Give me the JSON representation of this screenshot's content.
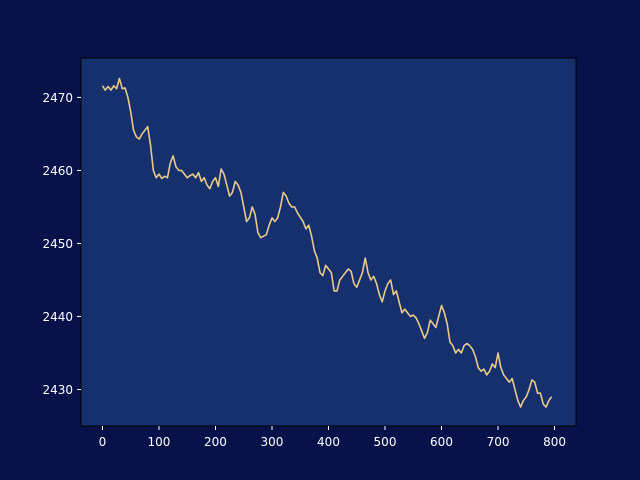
{
  "colors": {
    "figure_bg": "#08124a",
    "axes_bg": "#16306d",
    "axis": "#000000",
    "tick_text": "#ffffff",
    "line": "#e8c98a"
  },
  "chart_data": {
    "type": "line",
    "title": "",
    "xlabel": "",
    "ylabel": "",
    "xlim": [
      -38,
      838
    ],
    "ylim": [
      2425.0,
      2475.4
    ],
    "xticks": [
      0,
      100,
      200,
      300,
      400,
      500,
      600,
      700,
      800
    ],
    "yticks": [
      2430,
      2440,
      2450,
      2460,
      2470
    ],
    "grid": false,
    "legend": false,
    "series": [
      {
        "color": "#e8c98a",
        "points": [
          [
            0,
            2471.6
          ],
          [
            5,
            2471.0
          ],
          [
            10,
            2471.5
          ],
          [
            15,
            2471.0
          ],
          [
            20,
            2471.6
          ],
          [
            25,
            2471.2
          ],
          [
            30,
            2472.6
          ],
          [
            35,
            2471.2
          ],
          [
            40,
            2471.3
          ],
          [
            45,
            2470.0
          ],
          [
            50,
            2468.0
          ],
          [
            55,
            2465.5
          ],
          [
            60,
            2464.6
          ],
          [
            65,
            2464.3
          ],
          [
            70,
            2465.0
          ],
          [
            75,
            2465.5
          ],
          [
            80,
            2466.0
          ],
          [
            85,
            2463.5
          ],
          [
            90,
            2460.0
          ],
          [
            95,
            2459.0
          ],
          [
            100,
            2459.5
          ],
          [
            105,
            2458.9
          ],
          [
            110,
            2459.2
          ],
          [
            115,
            2459.0
          ],
          [
            120,
            2461.0
          ],
          [
            125,
            2462.0
          ],
          [
            130,
            2460.5
          ],
          [
            135,
            2460.0
          ],
          [
            140,
            2460.0
          ],
          [
            145,
            2459.5
          ],
          [
            150,
            2459.0
          ],
          [
            155,
            2459.3
          ],
          [
            160,
            2459.5
          ],
          [
            165,
            2459.0
          ],
          [
            170,
            2459.7
          ],
          [
            175,
            2458.5
          ],
          [
            180,
            2459.0
          ],
          [
            185,
            2458.0
          ],
          [
            190,
            2457.5
          ],
          [
            195,
            2458.5
          ],
          [
            200,
            2459.0
          ],
          [
            205,
            2457.8
          ],
          [
            210,
            2460.2
          ],
          [
            215,
            2459.5
          ],
          [
            220,
            2458.0
          ],
          [
            225,
            2456.5
          ],
          [
            230,
            2457.0
          ],
          [
            235,
            2458.5
          ],
          [
            240,
            2458.0
          ],
          [
            245,
            2457.0
          ],
          [
            250,
            2455.0
          ],
          [
            255,
            2453.0
          ],
          [
            260,
            2453.5
          ],
          [
            265,
            2455.0
          ],
          [
            270,
            2454.0
          ],
          [
            275,
            2451.5
          ],
          [
            280,
            2450.8
          ],
          [
            285,
            2451.0
          ],
          [
            290,
            2451.2
          ],
          [
            295,
            2452.5
          ],
          [
            300,
            2453.5
          ],
          [
            305,
            2453.0
          ],
          [
            310,
            2453.5
          ],
          [
            315,
            2455.0
          ],
          [
            320,
            2457.0
          ],
          [
            325,
            2456.5
          ],
          [
            330,
            2455.5
          ],
          [
            335,
            2455.0
          ],
          [
            340,
            2455.0
          ],
          [
            345,
            2454.2
          ],
          [
            350,
            2453.6
          ],
          [
            355,
            2453.0
          ],
          [
            360,
            2452.0
          ],
          [
            365,
            2452.5
          ],
          [
            370,
            2451.0
          ],
          [
            375,
            2449.0
          ],
          [
            380,
            2448.0
          ],
          [
            385,
            2446.0
          ],
          [
            390,
            2445.6
          ],
          [
            395,
            2447.0
          ],
          [
            400,
            2446.5
          ],
          [
            405,
            2446.0
          ],
          [
            410,
            2443.5
          ],
          [
            415,
            2443.5
          ],
          [
            420,
            2445.0
          ],
          [
            425,
            2445.5
          ],
          [
            430,
            2446.0
          ],
          [
            435,
            2446.5
          ],
          [
            440,
            2446.2
          ],
          [
            445,
            2444.5
          ],
          [
            450,
            2444.0
          ],
          [
            455,
            2445.0
          ],
          [
            460,
            2446.0
          ],
          [
            465,
            2448.0
          ],
          [
            470,
            2446.0
          ],
          [
            475,
            2445.0
          ],
          [
            480,
            2445.5
          ],
          [
            485,
            2444.5
          ],
          [
            490,
            2443.0
          ],
          [
            495,
            2442.0
          ],
          [
            500,
            2443.5
          ],
          [
            505,
            2444.5
          ],
          [
            510,
            2445.0
          ],
          [
            515,
            2443.0
          ],
          [
            520,
            2443.5
          ],
          [
            525,
            2442.0
          ],
          [
            530,
            2440.5
          ],
          [
            535,
            2441.0
          ],
          [
            540,
            2440.5
          ],
          [
            545,
            2440.0
          ],
          [
            550,
            2440.2
          ],
          [
            555,
            2439.8
          ],
          [
            560,
            2439.0
          ],
          [
            565,
            2438.0
          ],
          [
            570,
            2437.0
          ],
          [
            575,
            2437.8
          ],
          [
            580,
            2439.5
          ],
          [
            585,
            2439.0
          ],
          [
            590,
            2438.5
          ],
          [
            595,
            2440.0
          ],
          [
            600,
            2441.5
          ],
          [
            605,
            2440.5
          ],
          [
            610,
            2439.0
          ],
          [
            615,
            2436.5
          ],
          [
            620,
            2436.0
          ],
          [
            625,
            2435.0
          ],
          [
            630,
            2435.5
          ],
          [
            635,
            2435.0
          ],
          [
            640,
            2436.0
          ],
          [
            645,
            2436.3
          ],
          [
            650,
            2436.0
          ],
          [
            655,
            2435.5
          ],
          [
            660,
            2434.5
          ],
          [
            665,
            2433.0
          ],
          [
            670,
            2432.5
          ],
          [
            675,
            2432.8
          ],
          [
            680,
            2432.0
          ],
          [
            685,
            2432.5
          ],
          [
            690,
            2433.5
          ],
          [
            695,
            2433.0
          ],
          [
            700,
            2435.0
          ],
          [
            705,
            2433.0
          ],
          [
            710,
            2432.0
          ],
          [
            715,
            2431.5
          ],
          [
            720,
            2431.0
          ],
          [
            725,
            2431.5
          ],
          [
            730,
            2430.0
          ],
          [
            735,
            2428.5
          ],
          [
            740,
            2427.6
          ],
          [
            745,
            2428.5
          ],
          [
            750,
            2429.0
          ],
          [
            755,
            2430.0
          ],
          [
            760,
            2431.3
          ],
          [
            765,
            2431.0
          ],
          [
            770,
            2429.5
          ],
          [
            775,
            2429.5
          ],
          [
            780,
            2428.0
          ],
          [
            785,
            2427.6
          ],
          [
            790,
            2428.5
          ],
          [
            795,
            2429.0
          ]
        ]
      }
    ]
  }
}
